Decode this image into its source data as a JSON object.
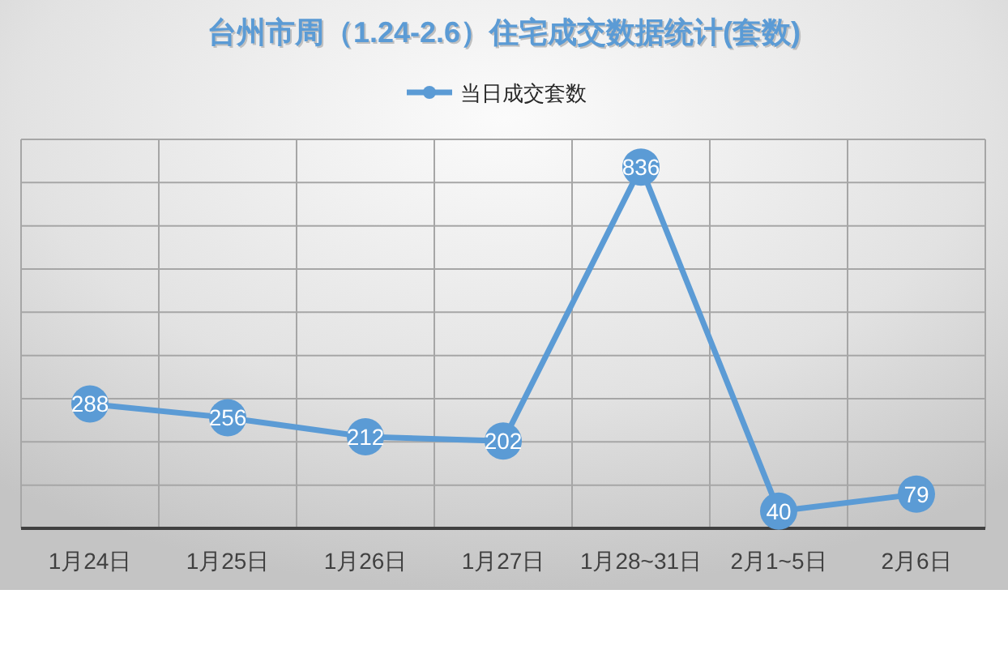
{
  "chart_data": {
    "type": "line",
    "title": "台州市周（1.24-2.6）住宅成交数据统计(套数)",
    "categories": [
      "1月24日",
      "1月25日",
      "1月26日",
      "1月27日",
      "1月28~31日",
      "2月1~5日",
      "2月6日"
    ],
    "series": [
      {
        "name": "当日成交套数",
        "color": "#5b9bd5",
        "values": [
          288,
          256,
          212,
          202,
          836,
          40,
          79
        ]
      }
    ],
    "ylim": [
      0,
      900
    ],
    "yticks": [
      {
        "value": 0,
        "label": null
      },
      {
        "value": 100,
        "label": null
      },
      {
        "value": 200,
        "label": null
      },
      {
        "value": 300,
        "label": null
      },
      {
        "value": 400,
        "label": null
      },
      {
        "value": 500,
        "label": null
      },
      {
        "value": 600,
        "label": null
      },
      {
        "value": 700,
        "label": null
      },
      {
        "value": 800,
        "label": null
      },
      {
        "value": 900,
        "label": null
      }
    ],
    "tick_labels": "x",
    "grid": true,
    "legend": "top",
    "marker": "circle",
    "data_labels": true
  }
}
